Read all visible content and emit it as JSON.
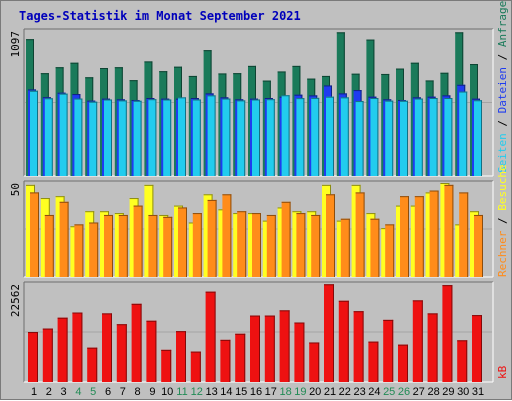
{
  "title": "Tages-Statistik im Monat September 2021",
  "colors": {
    "anfragen": "#1a7a5a",
    "dateien": "#1e3cf0",
    "seiten": "#22ccee",
    "besuche": "#ffff22",
    "rechner": "#ff8c1a",
    "kb": "#ee1111",
    "weekend_label": "#228b55",
    "weekday_label": "#000000",
    "title": "#0000bb"
  },
  "chart_data": [
    {
      "type": "bar",
      "panel": "top",
      "y_max_label": "1097",
      "ylim": [
        0,
        1097
      ],
      "categories": [
        "1",
        "2",
        "3",
        "4",
        "5",
        "6",
        "7",
        "8",
        "9",
        "10",
        "11",
        "12",
        "13",
        "14",
        "15",
        "16",
        "17",
        "18",
        "19",
        "20",
        "21",
        "22",
        "23",
        "24",
        "25",
        "26",
        "27",
        "28",
        "29",
        "30",
        "31"
      ],
      "weekend_days": [
        "4",
        "5",
        "11",
        "12",
        "18",
        "19",
        "25",
        "26"
      ],
      "series": [
        {
          "name": "Anfragen",
          "values": [
            1035,
            778,
            823,
            857,
            747,
            817,
            823,
            725,
            867,
            793,
            827,
            757,
            952,
            776,
            778,
            833,
            722,
            791,
            833,
            737,
            757,
            1087,
            774,
            1032,
            772,
            813,
            857,
            723,
            781,
            1087,
            847
          ]
        },
        {
          "name": "Dateien",
          "values": [
            655,
            596,
            630,
            620,
            570,
            585,
            580,
            575,
            590,
            585,
            585,
            590,
            625,
            595,
            580,
            585,
            590,
            600,
            615,
            610,
            685,
            625,
            650,
            600,
            580,
            575,
            595,
            600,
            610,
            690,
            585
          ]
        },
        {
          "name": "Seiten",
          "values": [
            645,
            588,
            623,
            586,
            562,
            579,
            572,
            569,
            581,
            579,
            595,
            579,
            610,
            586,
            572,
            579,
            581,
            611,
            589,
            591,
            600,
            595,
            567,
            590,
            570,
            569,
            586,
            590,
            590,
            639,
            573
          ]
        }
      ],
      "right_labels": [
        "Anfragen",
        "Dateien",
        "Seiten"
      ]
    },
    {
      "type": "bar",
      "panel": "middle",
      "y_max_label": "50",
      "ylim": [
        0,
        50
      ],
      "categories": [
        "1",
        "2",
        "3",
        "4",
        "5",
        "6",
        "7",
        "8",
        "9",
        "10",
        "11",
        "12",
        "13",
        "14",
        "15",
        "16",
        "17",
        "18",
        "19",
        "20",
        "21",
        "22",
        "23",
        "24",
        "25",
        "26",
        "27",
        "28",
        "29",
        "30",
        "31"
      ],
      "series": [
        {
          "name": "Besuche",
          "values": [
            49,
            42,
            43,
            27,
            35,
            35,
            34,
            42,
            49,
            33,
            38,
            29,
            44,
            36,
            34,
            34,
            30,
            37,
            35,
            35,
            49,
            30,
            49,
            34,
            26,
            38,
            38,
            45,
            50,
            28,
            35
          ]
        },
        {
          "name": "Rechner",
          "values": [
            45,
            33,
            40,
            28,
            29,
            33,
            33,
            38,
            33,
            32,
            37,
            34,
            41,
            44,
            35,
            34,
            33,
            40,
            34,
            33,
            44,
            31,
            45,
            31,
            28,
            43,
            43,
            46,
            49,
            45,
            33
          ]
        }
      ],
      "right_labels": [
        "Besuche",
        "Rechner"
      ]
    },
    {
      "type": "bar",
      "panel": "bottom",
      "y_max_label": "22562",
      "ylim": [
        0,
        22562
      ],
      "categories": [
        "1",
        "2",
        "3",
        "4",
        "5",
        "6",
        "7",
        "8",
        "9",
        "10",
        "11",
        "12",
        "13",
        "14",
        "15",
        "16",
        "17",
        "18",
        "19",
        "20",
        "21",
        "22",
        "23",
        "24",
        "25",
        "26",
        "27",
        "28",
        "29",
        "30",
        "31"
      ],
      "series": [
        {
          "name": "kB",
          "values": [
            11500,
            12300,
            14800,
            16000,
            7900,
            15800,
            13300,
            18000,
            14100,
            7400,
            11700,
            7000,
            20800,
            9700,
            11100,
            15300,
            15300,
            16500,
            13700,
            9100,
            22500,
            18700,
            16300,
            9300,
            14300,
            8600,
            18800,
            15800,
            22300,
            9600,
            15400
          ]
        }
      ],
      "right_labels": [
        "kB"
      ]
    }
  ]
}
